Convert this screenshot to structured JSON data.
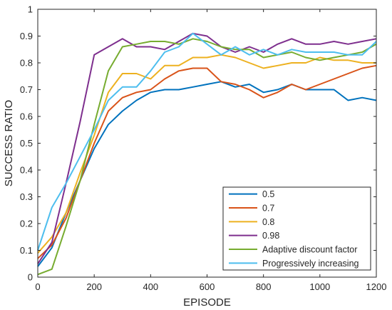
{
  "chart_data": {
    "type": "line",
    "xlabel": "EPISODE",
    "ylabel": "SUCCESS RATIO",
    "xlim": [
      0,
      1200
    ],
    "ylim": [
      0,
      1
    ],
    "xticks": [
      "0",
      "200",
      "400",
      "600",
      "800",
      "1000",
      "1200"
    ],
    "yticks": [
      "0",
      "0.1",
      "0.2",
      "0.3",
      "0.4",
      "0.5",
      "0.6",
      "0.7",
      "0.8",
      "0.9",
      "1"
    ],
    "grid": false,
    "legend_position": "bottom-right",
    "x": [
      0,
      50,
      100,
      150,
      200,
      250,
      300,
      350,
      400,
      450,
      500,
      550,
      600,
      650,
      700,
      750,
      800,
      850,
      900,
      950,
      1000,
      1050,
      1100,
      1150,
      1200
    ],
    "series": [
      {
        "name": "0.5",
        "color": "#0072BD",
        "values": [
          0.04,
          0.11,
          0.24,
          0.36,
          0.48,
          0.57,
          0.62,
          0.66,
          0.69,
          0.7,
          0.7,
          0.71,
          0.72,
          0.73,
          0.71,
          0.72,
          0.69,
          0.7,
          0.72,
          0.7,
          0.7,
          0.7,
          0.66,
          0.67,
          0.66
        ]
      },
      {
        "name": "0.7",
        "color": "#D95319",
        "values": [
          0.07,
          0.12,
          0.22,
          0.36,
          0.5,
          0.62,
          0.67,
          0.69,
          0.7,
          0.74,
          0.77,
          0.78,
          0.78,
          0.73,
          0.72,
          0.7,
          0.67,
          0.69,
          0.72,
          0.7,
          0.72,
          0.74,
          0.76,
          0.78,
          0.79
        ]
      },
      {
        "name": "0.8",
        "color": "#EDB120",
        "values": [
          0.09,
          0.15,
          0.24,
          0.39,
          0.53,
          0.69,
          0.76,
          0.76,
          0.74,
          0.79,
          0.79,
          0.82,
          0.82,
          0.83,
          0.82,
          0.8,
          0.78,
          0.79,
          0.8,
          0.8,
          0.82,
          0.81,
          0.81,
          0.8,
          0.8
        ]
      },
      {
        "name": "0.98",
        "color": "#7E2F8E",
        "values": [
          0.05,
          0.13,
          0.35,
          0.58,
          0.83,
          0.86,
          0.89,
          0.86,
          0.86,
          0.85,
          0.88,
          0.91,
          0.9,
          0.86,
          0.84,
          0.86,
          0.84,
          0.87,
          0.89,
          0.87,
          0.87,
          0.88,
          0.87,
          0.88,
          0.89
        ]
      },
      {
        "name": "Adaptive discount factor",
        "color": "#77AC30",
        "values": [
          0.01,
          0.03,
          0.19,
          0.36,
          0.57,
          0.77,
          0.86,
          0.87,
          0.88,
          0.88,
          0.87,
          0.89,
          0.88,
          0.86,
          0.85,
          0.85,
          0.82,
          0.83,
          0.84,
          0.82,
          0.81,
          0.82,
          0.83,
          0.84,
          0.87
        ]
      },
      {
        "name": "Progressively increasing",
        "color": "#4DBEEE",
        "values": [
          0.1,
          0.26,
          0.35,
          0.45,
          0.55,
          0.66,
          0.71,
          0.71,
          0.77,
          0.84,
          0.86,
          0.91,
          0.87,
          0.83,
          0.86,
          0.83,
          0.85,
          0.83,
          0.85,
          0.84,
          0.84,
          0.84,
          0.83,
          0.83,
          0.88
        ]
      }
    ]
  }
}
